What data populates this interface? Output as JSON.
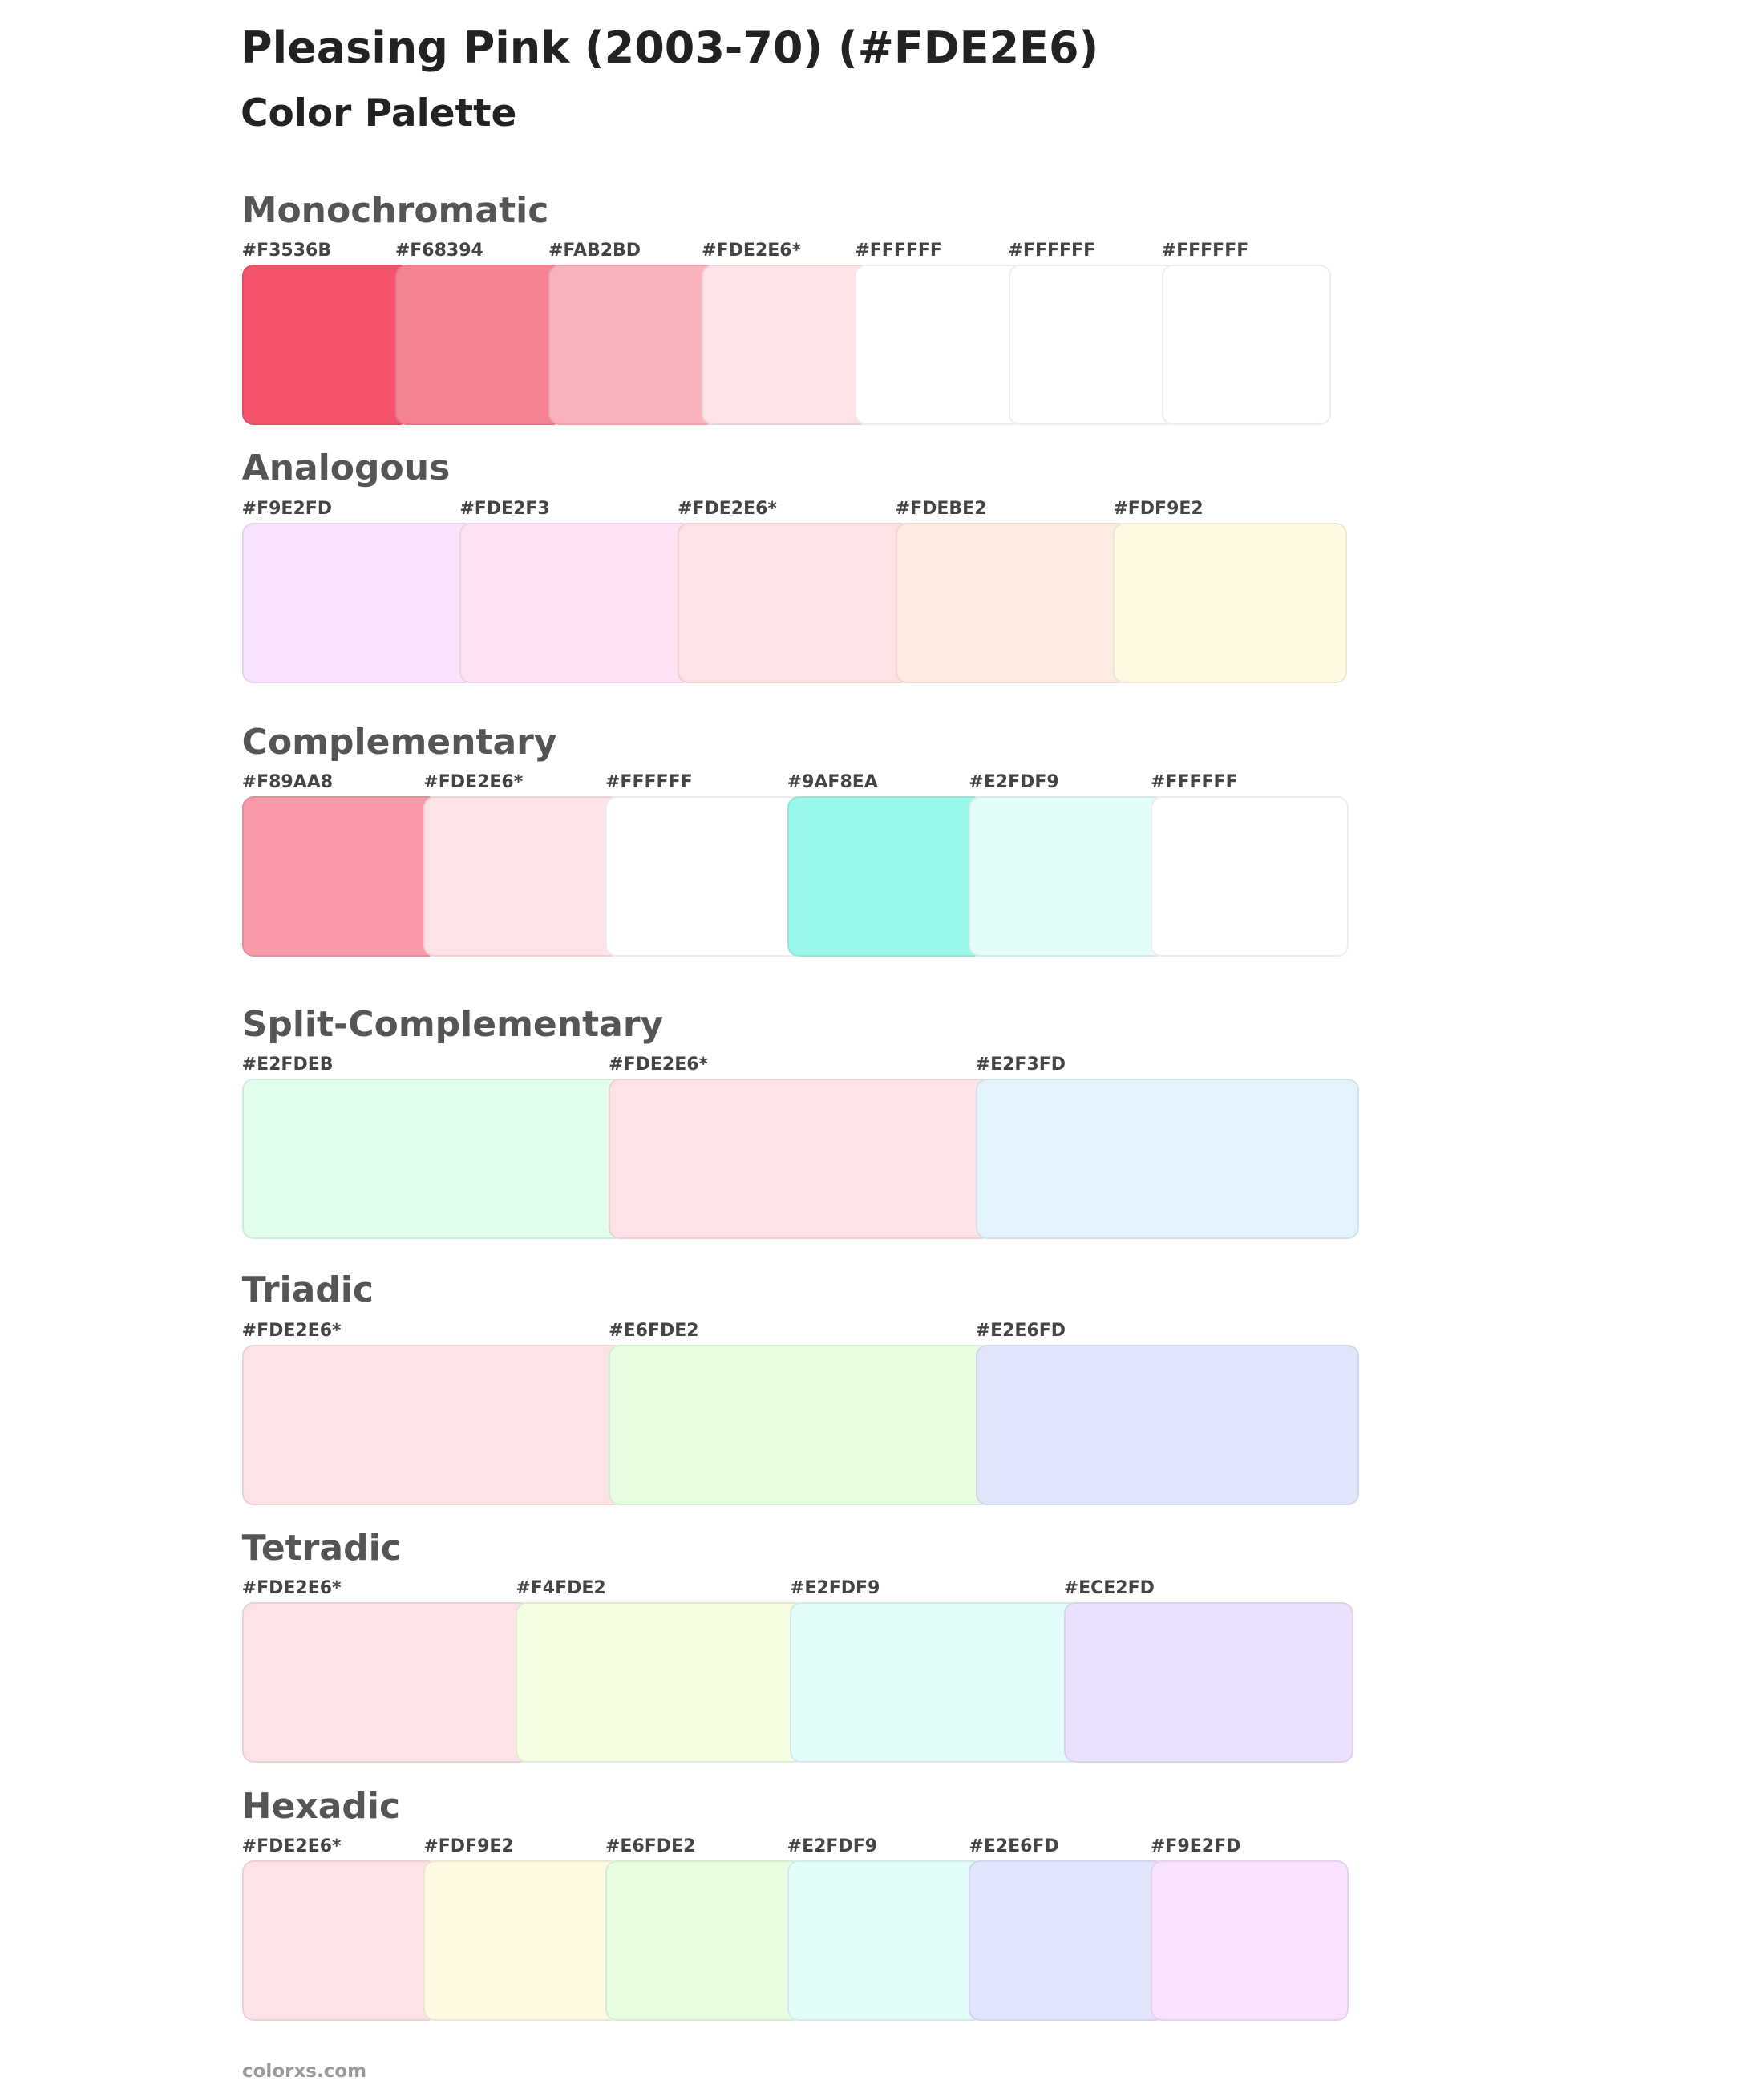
{
  "header": {
    "title": "Pleasing Pink (2003-70) (#FDE2E6)",
    "subtitle": "Color Palette"
  },
  "sections": [
    {
      "name": "Monochromatic",
      "swatches": [
        {
          "label": "#F3536B",
          "color": "#F3536B"
        },
        {
          "label": "#F68394",
          "color": "#F68394"
        },
        {
          "label": "#FAB2BD",
          "color": "#FAB2BD"
        },
        {
          "label": "#FDE2E6*",
          "color": "#FDE2E6"
        },
        {
          "label": "#FFFFFF",
          "color": "#FFFFFF"
        },
        {
          "label": "#FFFFFF",
          "color": "#FFFFFF"
        },
        {
          "label": "#FFFFFF",
          "color": "#FFFFFF"
        }
      ]
    },
    {
      "name": "Analogous",
      "swatches": [
        {
          "label": "#F9E2FD",
          "color": "#F9E2FD"
        },
        {
          "label": "#FDE2F3",
          "color": "#FDE2F3"
        },
        {
          "label": "#FDE2E6*",
          "color": "#FDE2E6"
        },
        {
          "label": "#FDEBE2",
          "color": "#FDEBE2"
        },
        {
          "label": "#FDF9E2",
          "color": "#FDF9E2"
        }
      ]
    },
    {
      "name": "Complementary",
      "swatches": [
        {
          "label": "#F89AA8",
          "color": "#F89AA8"
        },
        {
          "label": "#FDE2E6*",
          "color": "#FDE2E6"
        },
        {
          "label": "#FFFFFF",
          "color": "#FFFFFF"
        },
        {
          "label": "#9AF8EA",
          "color": "#9AF8EA"
        },
        {
          "label": "#E2FDF9",
          "color": "#E2FDF9"
        },
        {
          "label": "#FFFFFF",
          "color": "#FFFFFF"
        }
      ]
    },
    {
      "name": "Split-Complementary",
      "swatches": [
        {
          "label": "#E2FDEB",
          "color": "#E2FDEB"
        },
        {
          "label": "#FDE2E6*",
          "color": "#FDE2E6"
        },
        {
          "label": "#E2F3FD",
          "color": "#E2F3FD"
        }
      ]
    },
    {
      "name": "Triadic",
      "swatches": [
        {
          "label": "#FDE2E6*",
          "color": "#FDE2E6"
        },
        {
          "label": "#E6FDE2",
          "color": "#E6FDE2"
        },
        {
          "label": "#E2E6FD",
          "color": "#E2E6FD"
        }
      ]
    },
    {
      "name": "Tetradic",
      "swatches": [
        {
          "label": "#FDE2E6*",
          "color": "#FDE2E6"
        },
        {
          "label": "#F4FDE2",
          "color": "#F4FDE2"
        },
        {
          "label": "#E2FDF9",
          "color": "#E2FDF9"
        },
        {
          "label": "#ECE2FD",
          "color": "#ECE2FD"
        }
      ]
    },
    {
      "name": "Hexadic",
      "swatches": [
        {
          "label": "#FDE2E6*",
          "color": "#FDE2E6"
        },
        {
          "label": "#FDF9E2",
          "color": "#FDF9E2"
        },
        {
          "label": "#E6FDE2",
          "color": "#E6FDE2"
        },
        {
          "label": "#E2FDF9",
          "color": "#E2FDF9"
        },
        {
          "label": "#E2E6FD",
          "color": "#E2E6FD"
        },
        {
          "label": "#F9E2FD",
          "color": "#F9E2FD"
        }
      ]
    }
  ],
  "footer": "colorxs.com"
}
